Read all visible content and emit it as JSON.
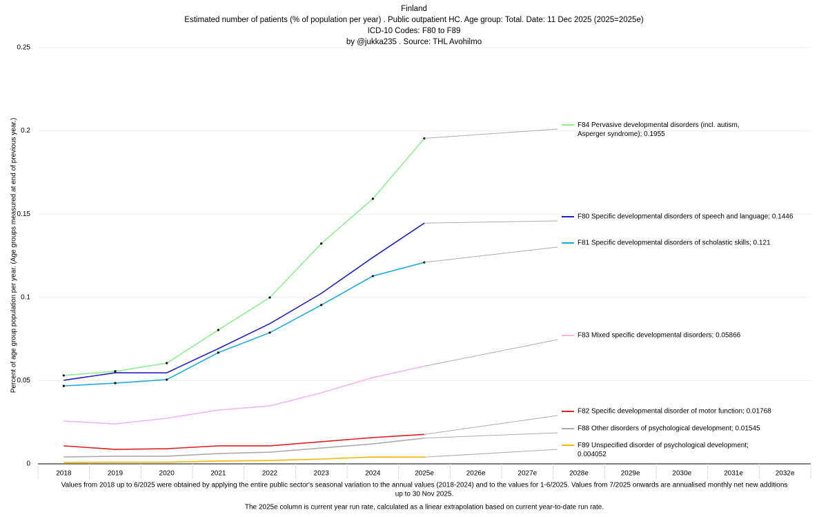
{
  "chart_data": {
    "type": "line",
    "title": "Finland",
    "subtitle": [
      "Estimated number of patients  (% of population per year) . Public outpatient HC. Age group: Total. Date: 11 Dec 2025 (2025=2025e)",
      "ICD-10 Codes: F80 to F89",
      "by @jukka235 . Source: THL Avohilmo"
    ],
    "y_label": "Percent of age group population per year. (Age groups measured at end of previous year.)",
    "categories": [
      "2018",
      "2019",
      "2020",
      "2021",
      "2022",
      "2023",
      "2024",
      "2025e",
      "2026e",
      "2027e",
      "2028e",
      "2029e",
      "2030e",
      "2031e",
      "2032e"
    ],
    "ylim": [
      0,
      0.25
    ],
    "yticks": [
      0,
      0.05,
      0.1,
      0.15,
      0.2,
      0.25
    ],
    "grid": true,
    "series": [
      {
        "name": "F84 Pervasive developmental disorders (incl. autism, Asperger syndrome); 0.1955",
        "color": "#90ee90",
        "markers": true,
        "values": [
          0.0531,
          0.0556,
          0.0605,
          0.0804,
          0.0999,
          0.1323,
          0.1592,
          0.1955,
          null,
          null,
          null,
          null,
          null,
          null,
          null
        ]
      },
      {
        "name": "F80 Specific developmental disorders of speech and language; 0.1446",
        "color": "#1f1fbf",
        "markers": false,
        "values": [
          0.0502,
          0.0547,
          0.0547,
          0.0692,
          0.0842,
          0.1024,
          0.124,
          0.1446,
          null,
          null,
          null,
          null,
          null,
          null,
          null
        ]
      },
      {
        "name": "F81 Specific developmental disorders of scholastic skills; 0.121",
        "color": "#1fa9e0",
        "markers": true,
        "values": [
          0.0468,
          0.0485,
          0.0506,
          0.0668,
          0.0788,
          0.0954,
          0.1128,
          0.121,
          null,
          null,
          null,
          null,
          null,
          null,
          null
        ]
      },
      {
        "name": "F83 Mixed specific developmental disorders; 0.05866",
        "color": "#f4b4f4",
        "markers": false,
        "values": [
          0.0257,
          0.024,
          0.0274,
          0.0323,
          0.0348,
          0.0427,
          0.0518,
          0.05866,
          null,
          null,
          null,
          null,
          null,
          null,
          null
        ]
      },
      {
        "name": "F82 Specific developmental disorder of motor function; 0.01768",
        "color": "#e02020",
        "markers": false,
        "values": [
          0.0108,
          0.0087,
          0.0091,
          0.0108,
          0.0108,
          0.0133,
          0.0158,
          0.01768,
          null,
          null,
          null,
          null,
          null,
          null,
          null
        ]
      },
      {
        "name": "F88 Other disorders of psychological development; 0.01545",
        "color": "#aaaaaa",
        "markers": false,
        "values": [
          0.0041,
          0.0046,
          0.0046,
          0.0062,
          0.007,
          0.0095,
          0.012,
          0.01545,
          null,
          null,
          null,
          null,
          null,
          null,
          null
        ]
      },
      {
        "name": "F89 Unspecified disorder of psychological development; 0.004052",
        "color": "#f0b800",
        "markers": false,
        "values": [
          0.0008,
          0.001,
          0.001,
          0.0017,
          0.002,
          0.0029,
          0.0041,
          0.004052,
          null,
          null,
          null,
          null,
          null,
          null,
          null
        ]
      }
    ],
    "notes": [
      "Values from 2018 up to 6/2025 were obtained by applying the entire public sector's seasonal variation to the annual values (2018-2024) and to the values for 1-6/2025. Values from 7/2025 onwards are annualised monthly net new additions",
      "up to 30 Nov 2025.",
      "The 2025e column is current year run rate, calculated as a linear extrapolation based on current year-to-date run rate."
    ]
  }
}
